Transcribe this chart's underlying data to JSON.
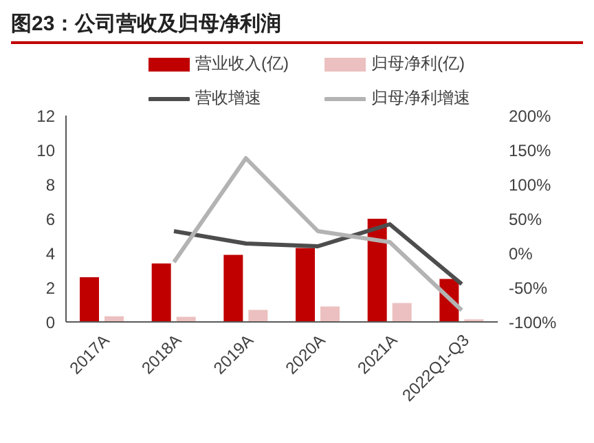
{
  "chart_data": {
    "type": "bar",
    "title": "图23：公司营收及归母净利润",
    "categories": [
      "2017A",
      "2018A",
      "2019A",
      "2020A",
      "2021A",
      "2022Q1-Q3"
    ],
    "series": [
      {
        "name": "营业收入(亿)",
        "color": "#c00000",
        "values": [
          2.6,
          3.4,
          3.9,
          4.3,
          6.0,
          2.5
        ]
      },
      {
        "name": "归母净利(亿)",
        "color": "#ecc0c0",
        "values": [
          0.33,
          0.3,
          0.7,
          0.9,
          1.1,
          0.15
        ]
      },
      {
        "name": "营收增速",
        "type": "line",
        "axis": "y2",
        "color": "#4d4d4d",
        "values": [
          null,
          32,
          14,
          10,
          42,
          -45
        ]
      },
      {
        "name": "归母净利增速",
        "type": "line",
        "axis": "y2",
        "color": "#b3b3b3",
        "values": [
          null,
          -13,
          138,
          32,
          16,
          -83
        ]
      }
    ],
    "ylim": [
      0,
      12
    ],
    "yticks": [
      0,
      2,
      4,
      6,
      8,
      10,
      12
    ],
    "y2lim": [
      -100,
      200
    ],
    "y2ticks": [
      {
        "value": -100,
        "label": "-100%"
      },
      {
        "value": -50,
        "label": "-50%"
      },
      {
        "value": 0,
        "label": "0%"
      },
      {
        "value": 50,
        "label": "50%"
      },
      {
        "value": 100,
        "label": "100%"
      },
      {
        "value": 150,
        "label": "150%"
      },
      {
        "value": 200,
        "label": "200%"
      }
    ],
    "legend": "top",
    "marker": "none",
    "line_style": "solid"
  }
}
